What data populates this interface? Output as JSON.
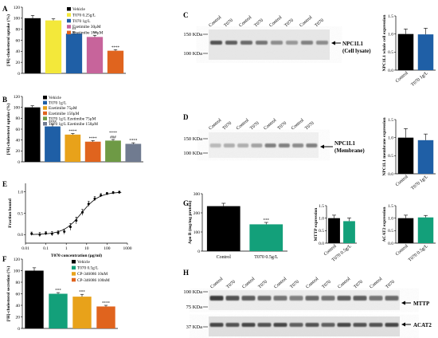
{
  "panel_letters": {
    "A": "A",
    "B": "B",
    "C": "C",
    "D": "D",
    "E": "E",
    "F": "F",
    "G": "G",
    "H": "H"
  },
  "chart_data": [
    {
      "id": "A",
      "type": "bar",
      "ylabel": "[³H]-cholesterol uptake (%)",
      "ylim": [
        0,
        120
      ],
      "yticks": [
        0,
        20,
        40,
        60,
        80,
        100,
        120
      ],
      "legend_placement": "top-right",
      "series": [
        {
          "name": "Vehicle",
          "value": 100,
          "error": 5,
          "color": "#000000",
          "sig": ""
        },
        {
          "name": "T070 0.25g/L",
          "value": 96,
          "error": 3,
          "color": "#f3e83a",
          "sig": ""
        },
        {
          "name": "T070 1g/L",
          "value": 72,
          "error": 3,
          "color": "#1f5fa6",
          "sig": "**"
        },
        {
          "name": "Ezetimibe 30μM",
          "value": 66,
          "error": 3,
          "color": "#c7649b",
          "sig": "**"
        },
        {
          "name": "Ezetimibe 150μM",
          "value": 41,
          "error": 2,
          "color": "#e0641e",
          "sig": "****"
        }
      ]
    },
    {
      "id": "B",
      "type": "bar",
      "ylabel": "[³H]-cholesterol uptake (%)",
      "ylim": [
        0,
        120
      ],
      "yticks": [
        0,
        20,
        40,
        60,
        80,
        100,
        120
      ],
      "legend_placement": "top-right",
      "series": [
        {
          "name": "Vehicle",
          "value": 100,
          "error": 3,
          "color": "#000000",
          "sig": ""
        },
        {
          "name": "T070 1g/L",
          "value": 65,
          "error": 4,
          "color": "#1f5fa6",
          "sig": "****"
        },
        {
          "name": "Ezetimibe 75μM",
          "value": 50,
          "error": 2,
          "color": "#e8a21a",
          "sig": "****"
        },
        {
          "name": "Ezetimibe 150μM",
          "value": 37,
          "error": 2,
          "color": "#e0641e",
          "sig": "****"
        },
        {
          "name": "T070 1g/L Ezetimibe 75μM",
          "value": 39,
          "error": 2,
          "color": "#6e9a45",
          "sig": "****\n###"
        },
        {
          "name": "T070 1g/L Ezetimibe 150μM",
          "value": 33,
          "error": 2,
          "color": "#707b90",
          "sig": "****"
        }
      ]
    },
    {
      "id": "C-quant",
      "type": "bar",
      "ylabel": "NPC1L1 whole cell expression",
      "ylim": [
        0,
        1.5
      ],
      "yticks": [
        0,
        0.5,
        1.0,
        1.5
      ],
      "categories": [
        "Control",
        "T070 1g/L"
      ],
      "values": [
        1.0,
        0.99
      ],
      "errors": [
        0.14,
        0.17
      ],
      "colors": [
        "#000000",
        "#1f5fa6"
      ]
    },
    {
      "id": "D-quant",
      "type": "bar",
      "ylabel": "NPC1L1 membrane expression",
      "ylim": [
        0,
        1.5
      ],
      "yticks": [
        0,
        0.5,
        1.0,
        1.5
      ],
      "categories": [
        "Control",
        "T070 1g/L"
      ],
      "values": [
        1.0,
        0.93
      ],
      "errors": [
        0.25,
        0.17
      ],
      "colors": [
        "#000000",
        "#1f5fa6"
      ]
    },
    {
      "id": "E",
      "type": "scatter",
      "xlabel": "T070 concentration (μg/ml)",
      "ylabel": "Fraction bound",
      "xscale": "log",
      "xlim": [
        0.01,
        1000
      ],
      "xticks": [
        0.01,
        0.1,
        1,
        10,
        100,
        1000
      ],
      "xticklabels": [
        "0.01",
        "0.1",
        "1",
        "10",
        "100",
        "1000"
      ],
      "ylim": [
        -0.2,
        1.2
      ],
      "yticks": [
        0.0,
        0.5,
        1.0
      ],
      "yticklabels": [
        "0.0",
        "0.5",
        "1.0"
      ],
      "x": [
        0.02,
        0.05,
        0.1,
        0.2,
        0.4,
        0.8,
        1.6,
        3.1,
        6.2,
        12.5,
        25,
        50,
        100,
        200,
        400
      ],
      "y": [
        0.02,
        0.0,
        0.03,
        0.02,
        0.04,
        0.07,
        0.18,
        0.33,
        0.52,
        0.72,
        0.84,
        0.92,
        0.96,
        0.98,
        0.99
      ],
      "err": [
        0.04,
        0.05,
        0.04,
        0.05,
        0.05,
        0.06,
        0.08,
        0.08,
        0.07,
        0.06,
        0.05,
        0.04,
        0.03,
        0.03,
        0.03
      ],
      "fit": {
        "bottom": 0.0,
        "top": 1.0,
        "ec50": 5.5,
        "hill": 1.0
      }
    },
    {
      "id": "F",
      "type": "bar",
      "ylabel": "[³H]-cholesterol secretion (%)",
      "ylim": [
        0,
        120
      ],
      "yticks": [
        0,
        20,
        40,
        60,
        80,
        100,
        120
      ],
      "legend_placement": "top-right",
      "series": [
        {
          "name": "Vehicle",
          "value": 100,
          "error": 5,
          "color": "#000000",
          "sig": ""
        },
        {
          "name": "T070 0.5g/L",
          "value": 60,
          "error": 2,
          "color": "#13a07a",
          "sig": "***"
        },
        {
          "name": "CP-346086 10nM",
          "value": 55,
          "error": 4,
          "color": "#e8a21a",
          "sig": "***"
        },
        {
          "name": "CP-346086 100nM",
          "value": 38,
          "error": 2,
          "color": "#e0641e",
          "sig": "****"
        }
      ]
    },
    {
      "id": "G-apob",
      "type": "bar",
      "ylabel": "Apo B (mg/mg protein)",
      "ylim": [
        0,
        300
      ],
      "yticks": [
        0,
        100,
        200,
        300
      ],
      "categories": [
        "Control",
        "T070 0.5g/L"
      ],
      "values": [
        235,
        140
      ],
      "errors": [
        15,
        10
      ],
      "colors": [
        "#000000",
        "#13a07a"
      ],
      "sig": [
        "",
        "***"
      ]
    },
    {
      "id": "G-mttp",
      "type": "bar",
      "ylabel": "MTTP expression",
      "ylim": [
        0,
        1.5
      ],
      "yticks": [
        0,
        0.5,
        1.0,
        1.5
      ],
      "categories": [
        "Control",
        "T070 0.5g/L"
      ],
      "values": [
        1.0,
        0.88
      ],
      "errors": [
        0.12,
        0.13
      ],
      "colors": [
        "#000000",
        "#13a07a"
      ]
    },
    {
      "id": "G-acat2",
      "type": "bar",
      "ylabel": "ACAT2 expression",
      "ylim": [
        0,
        1.5
      ],
      "yticks": [
        0,
        0.5,
        1.0,
        1.5
      ],
      "categories": [
        "Control",
        "T070 0.5g/L"
      ],
      "values": [
        1.0,
        1.03
      ],
      "errors": [
        0.12,
        0.08
      ],
      "colors": [
        "#000000",
        "#13a07a"
      ]
    }
  ],
  "blots": {
    "C": {
      "lanes": [
        "Control",
        "T070",
        "Control",
        "T070",
        "Control",
        "T070",
        "Control",
        "T070"
      ],
      "markers": [
        "150 KDa",
        "100 KDa"
      ],
      "target": "NPC1L1\n(Cell lysate)",
      "band_darkness": [
        0.75,
        0.7,
        0.65,
        0.6,
        0.5,
        0.45,
        0.55,
        0.5
      ]
    },
    "D": {
      "lanes": [
        "Control",
        "T070",
        "Control",
        "T070",
        "Control",
        "T070",
        "Control",
        "T070"
      ],
      "markers": [
        "150 KDa",
        "100 KDa"
      ],
      "target": "NPC1L1\n(Membrane)",
      "band_darkness": [
        0.3,
        0.35,
        0.35,
        0.4,
        0.55,
        0.55,
        0.5,
        0.55
      ]
    },
    "H": {
      "lanes": [
        "Control",
        "T070",
        "Control",
        "T070",
        "Control",
        "T070",
        "Control",
        "T070",
        "Control",
        "T070",
        "Control",
        "T070"
      ],
      "markers": [
        "100 KDa",
        "75 KDa",
        "37 KDa"
      ],
      "targets": [
        "MTTP",
        "ACAT2"
      ],
      "mttp_darkness": [
        0.85,
        0.75,
        0.7,
        0.65,
        0.6,
        0.55,
        0.65,
        0.6,
        0.7,
        0.7,
        0.6,
        0.65
      ],
      "acat2_darkness": [
        0.8,
        0.75,
        0.8,
        0.75,
        0.8,
        0.7,
        0.75,
        0.7,
        0.8,
        0.75,
        0.75,
        0.8
      ]
    }
  }
}
